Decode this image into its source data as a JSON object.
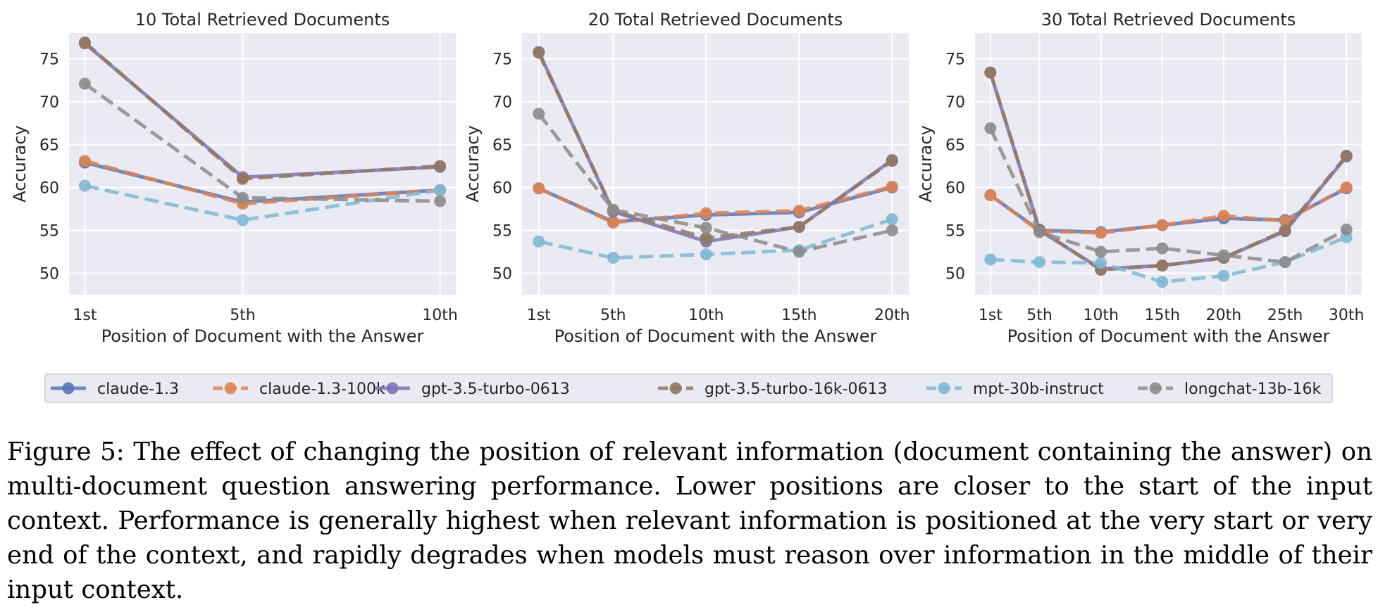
{
  "figure_caption": "Figure 5: The effect of changing the position of relevant information (document containing the answer) on multi-document question answering performance. Lower positions are closer to the start of the input context. Performance is generally highest when relevant information is positioned at the very start or very end of the context, and rapidly degrades when models must reason over information in the middle of their input context.",
  "legend": [
    {
      "name": "claude-1.3",
      "color": "#5a74b8",
      "dashed": false
    },
    {
      "name": "claude-1.3-100k",
      "color": "#dd8452",
      "dashed": true
    },
    {
      "name": "gpt-3.5-turbo-0613",
      "color": "#8172b3",
      "dashed": false
    },
    {
      "name": "gpt-3.5-turbo-16k-0613",
      "color": "#937860",
      "dashed": true
    },
    {
      "name": "mpt-30b-instruct",
      "color": "#7fb8d4",
      "dashed": true
    },
    {
      "name": "longchat-13b-16k",
      "color": "#8c8c8c",
      "dashed": true
    }
  ],
  "chart_data": [
    {
      "type": "line",
      "title": "10 Total Retrieved Documents",
      "xlabel": "Position of Document with the Answer",
      "ylabel": "Accuracy",
      "x": [
        1,
        5,
        10
      ],
      "x_tick_labels": [
        "1st",
        "5th",
        "10th"
      ],
      "xlim": [
        0.6,
        10.4
      ],
      "ylim": [
        47.5,
        78.0
      ],
      "y_ticks": [
        50,
        55,
        60,
        65,
        70,
        75
      ],
      "series": [
        {
          "name": "claude-1.3",
          "values": [
            62.9,
            58.3,
            59.7
          ]
        },
        {
          "name": "claude-1.3-100k",
          "values": [
            63.1,
            58.1,
            59.7
          ]
        },
        {
          "name": "gpt-3.5-turbo-0613",
          "values": [
            76.8,
            61.2,
            62.4
          ]
        },
        {
          "name": "gpt-3.5-turbo-16k-0613",
          "values": [
            76.9,
            61.0,
            62.5
          ]
        },
        {
          "name": "mpt-30b-instruct",
          "values": [
            60.2,
            56.2,
            59.7
          ]
        },
        {
          "name": "longchat-13b-16k",
          "values": [
            72.1,
            58.8,
            58.4
          ]
        }
      ]
    },
    {
      "type": "line",
      "title": "20 Total Retrieved Documents",
      "xlabel": "Position of Document with the Answer",
      "ylabel": "Accuracy",
      "x": [
        1,
        5,
        10,
        15,
        20
      ],
      "x_tick_labels": [
        "1st",
        "5th",
        "10th",
        "15th",
        "20th"
      ],
      "xlim": [
        0.1,
        20.9
      ],
      "ylim": [
        47.5,
        78.0
      ],
      "y_ticks": [
        50,
        55,
        60,
        65,
        70,
        75
      ],
      "series": [
        {
          "name": "claude-1.3",
          "values": [
            59.9,
            56.0,
            56.8,
            57.1,
            60.0
          ]
        },
        {
          "name": "claude-1.3-100k",
          "values": [
            59.9,
            55.9,
            57.0,
            57.3,
            60.1
          ]
        },
        {
          "name": "gpt-3.5-turbo-0613",
          "values": [
            75.8,
            57.2,
            53.7,
            55.4,
            63.2
          ]
        },
        {
          "name": "gpt-3.5-turbo-16k-0613",
          "values": [
            75.7,
            57.3,
            54.1,
            55.4,
            63.1
          ]
        },
        {
          "name": "mpt-30b-instruct",
          "values": [
            53.7,
            51.8,
            52.2,
            52.7,
            56.3
          ]
        },
        {
          "name": "longchat-13b-16k",
          "values": [
            68.6,
            57.4,
            55.3,
            52.5,
            55.0
          ]
        }
      ]
    },
    {
      "type": "line",
      "title": "30 Total Retrieved Documents",
      "xlabel": "Position of Document with the Answer",
      "ylabel": "Accuracy",
      "x": [
        1,
        5,
        10,
        15,
        20,
        25,
        30
      ],
      "x_tick_labels": [
        "1st",
        "5th",
        "10th",
        "15th",
        "20th",
        "25th",
        "30th"
      ],
      "xlim": [
        -0.25,
        31.25
      ],
      "ylim": [
        47.5,
        78.0
      ],
      "y_ticks": [
        50,
        55,
        60,
        65,
        70,
        75
      ],
      "series": [
        {
          "name": "claude-1.3",
          "values": [
            59.1,
            55.0,
            54.8,
            55.6,
            56.4,
            56.2,
            59.9
          ]
        },
        {
          "name": "claude-1.3-100k",
          "values": [
            59.1,
            54.9,
            54.7,
            55.6,
            56.7,
            56.1,
            60.0
          ]
        },
        {
          "name": "gpt-3.5-turbo-0613",
          "values": [
            73.4,
            55.0,
            50.5,
            50.9,
            51.8,
            54.9,
            63.6
          ]
        },
        {
          "name": "gpt-3.5-turbo-16k-0613",
          "values": [
            73.4,
            55.1,
            50.4,
            50.9,
            51.8,
            55.0,
            63.7
          ]
        },
        {
          "name": "mpt-30b-instruct",
          "values": [
            51.6,
            51.3,
            51.2,
            49.0,
            49.7,
            51.3,
            54.2
          ]
        },
        {
          "name": "longchat-13b-16k",
          "values": [
            66.9,
            54.8,
            52.5,
            52.9,
            52.1,
            51.3,
            55.1
          ]
        }
      ]
    }
  ]
}
